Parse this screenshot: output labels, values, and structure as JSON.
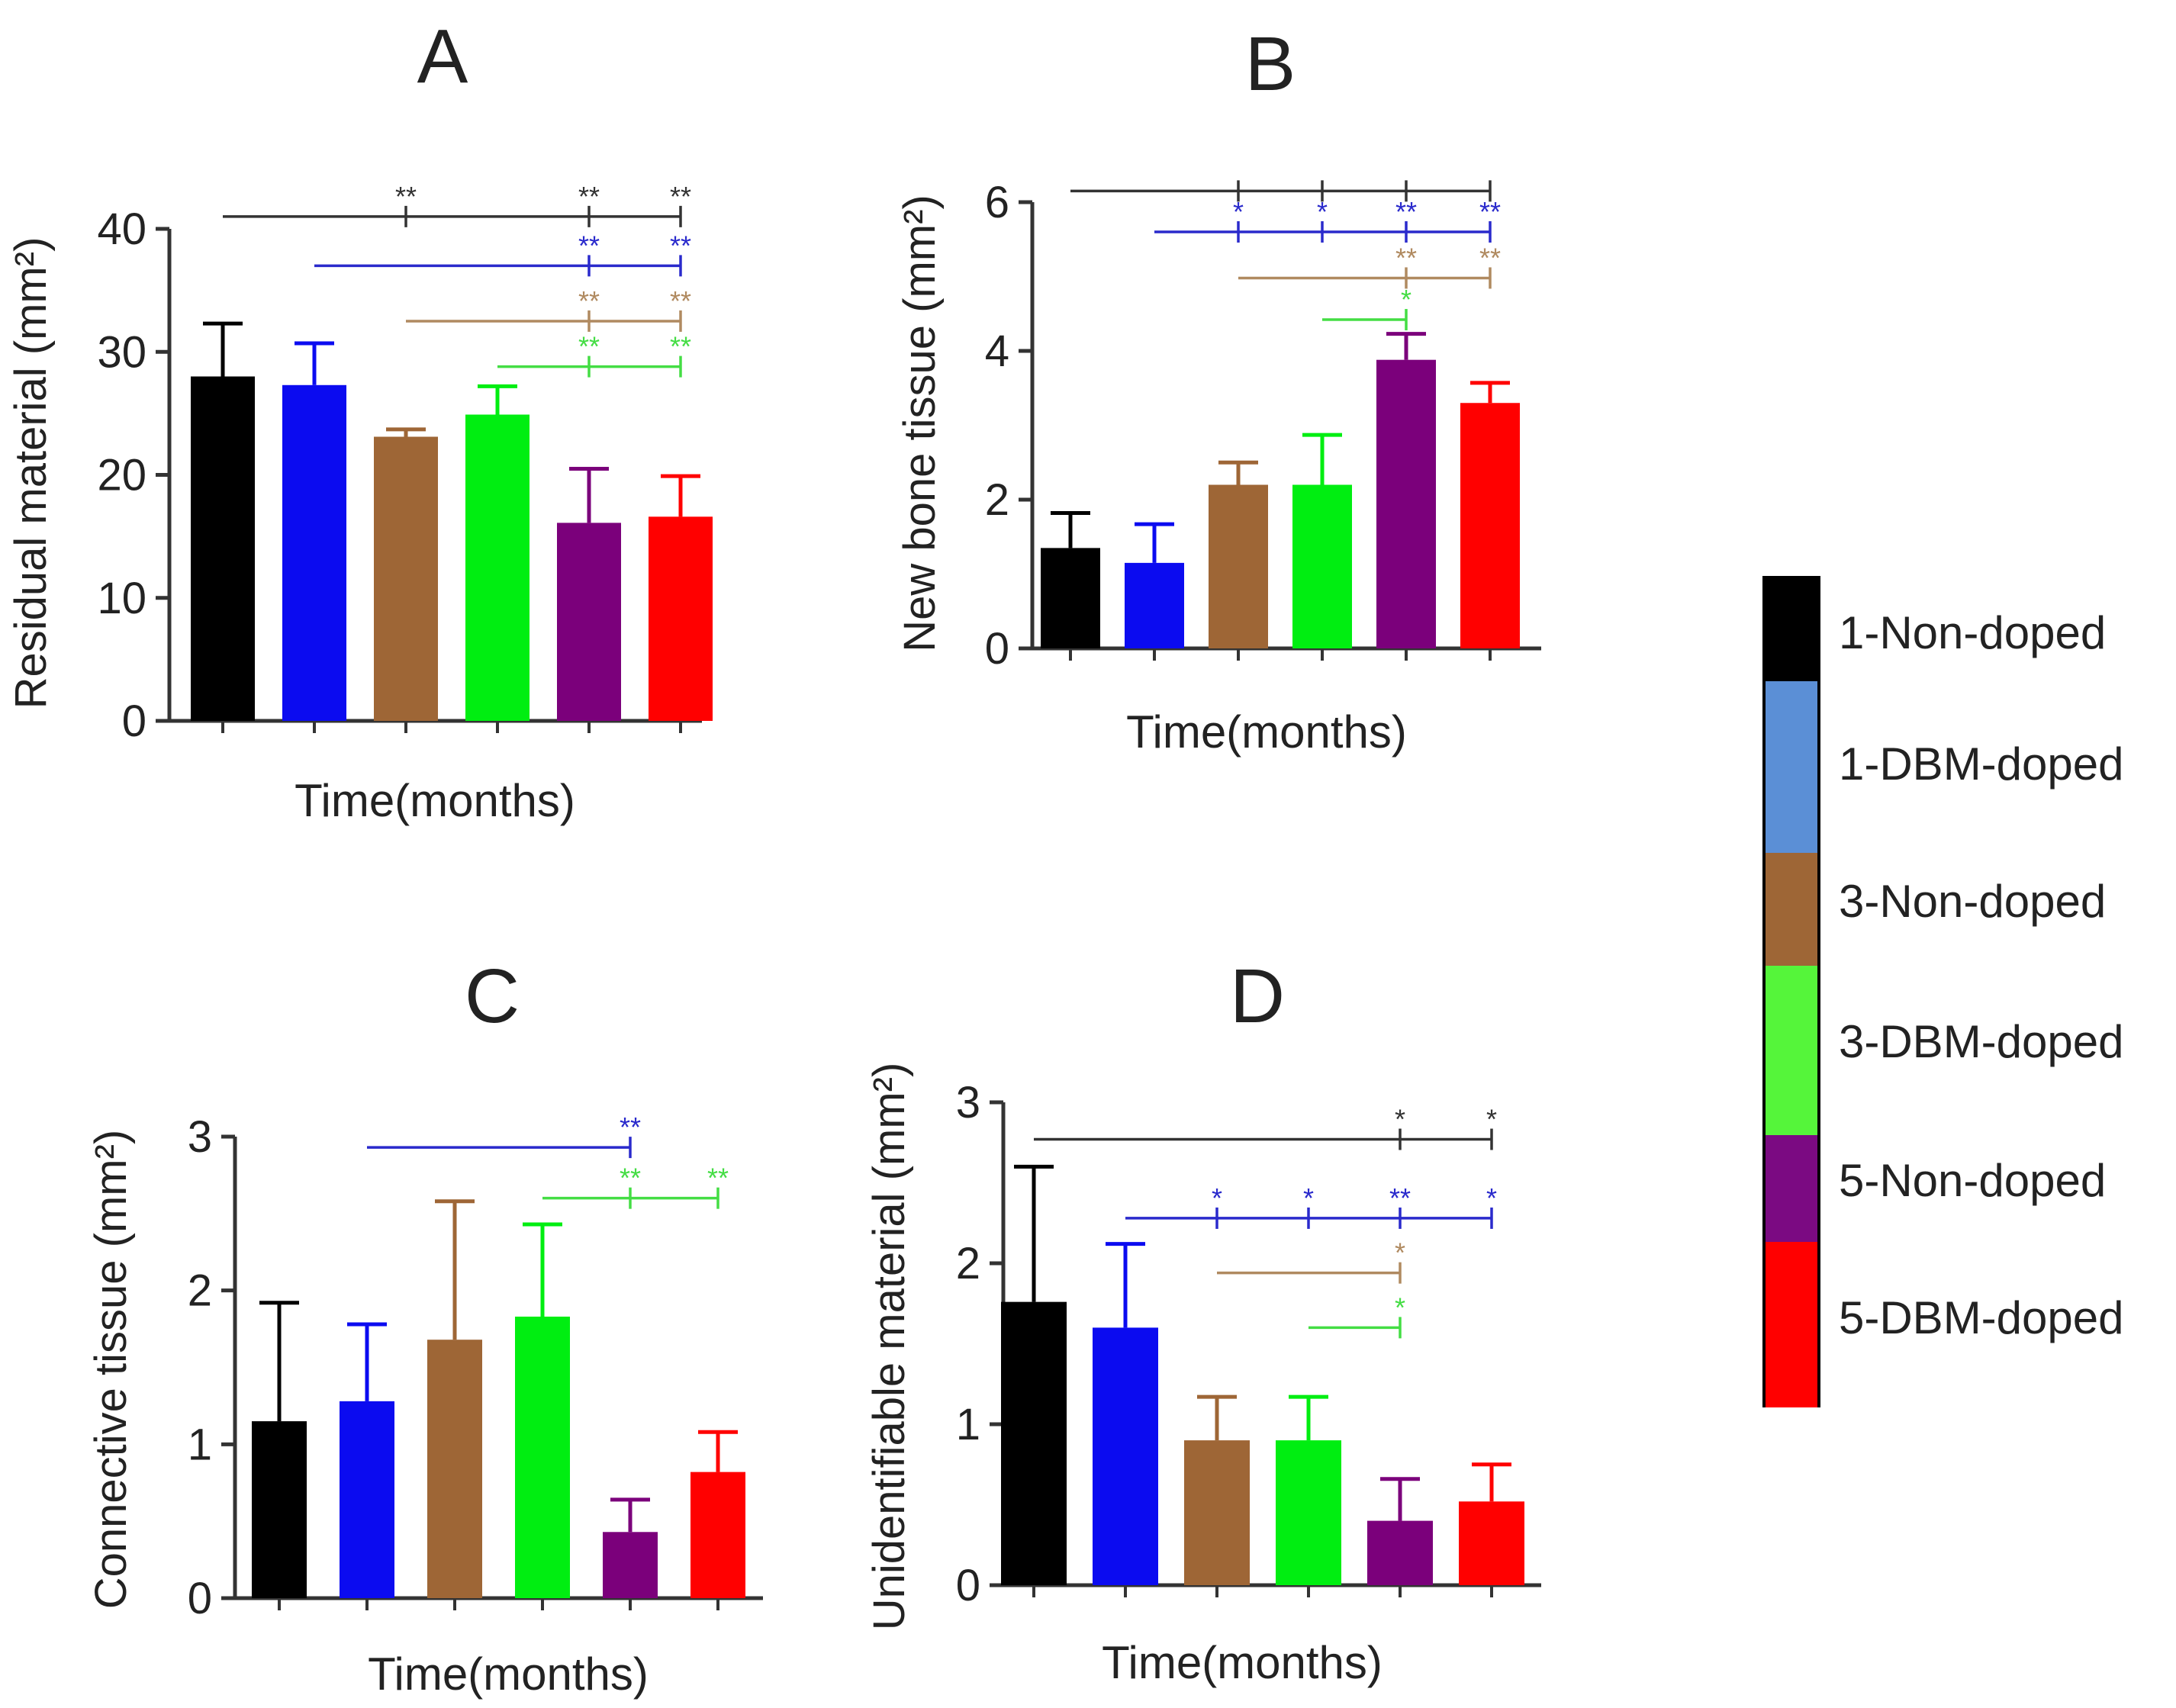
{
  "chart_data": [
    {
      "panel": "A",
      "type": "bar",
      "ylabel": "Residual material (mm²)",
      "xlabel": "Time(months)",
      "yticks": [
        0,
        10,
        20,
        30,
        40
      ],
      "ylim": [
        0,
        40
      ],
      "categories": [
        "1-Non-doped",
        "1-DBM-doped",
        "3-Non-doped",
        "3-DBM-doped",
        "5-Non-doped",
        "5-DBM-doped"
      ],
      "values": [
        28,
        27.3,
        23.1,
        24.9,
        16.1,
        16.6
      ],
      "errors": [
        4.3,
        3.4,
        0.6,
        2.3,
        4.4,
        3.3
      ],
      "significance": [
        {
          "color": "#333333",
          "y": 41,
          "from": 0,
          "ticks": [
            {
              "at": 2,
              "label": "**"
            },
            {
              "at": 4,
              "label": "**"
            },
            {
              "at": 5,
              "label": "**"
            }
          ]
        },
        {
          "color": "#2a2acc",
          "y": 37,
          "from": 1,
          "ticks": [
            {
              "at": 4,
              "label": "**"
            },
            {
              "at": 5,
              "label": "**"
            }
          ]
        },
        {
          "color": "#b08a60",
          "y": 32.5,
          "from": 2,
          "ticks": [
            {
              "at": 4,
              "label": "**"
            },
            {
              "at": 5,
              "label": "**"
            }
          ]
        },
        {
          "color": "#44dd44",
          "y": 28.8,
          "from": 3,
          "ticks": [
            {
              "at": 4,
              "label": "**"
            },
            {
              "at": 5,
              "label": "**"
            }
          ]
        }
      ]
    },
    {
      "panel": "B",
      "type": "bar",
      "ylabel": "New bone tissue (mm²)",
      "xlabel": "Time(months)",
      "yticks": [
        0,
        2,
        4,
        6
      ],
      "ylim": [
        0,
        6
      ],
      "categories": [
        "1-Non-doped",
        "1-DBM-doped",
        "3-Non-doped",
        "3-DBM-doped",
        "5-Non-doped",
        "5-DBM-doped"
      ],
      "values": [
        1.35,
        1.15,
        2.2,
        2.2,
        3.88,
        3.3
      ],
      "errors": [
        0.47,
        0.52,
        0.3,
        0.67,
        0.35,
        0.27
      ],
      "significance": [
        {
          "color": "#333333",
          "y": 6.15,
          "from": 0,
          "ticks": [
            {
              "at": 2,
              "label": ""
            },
            {
              "at": 3,
              "label": ""
            },
            {
              "at": 4,
              "label": ""
            },
            {
              "at": 5,
              "label": ""
            }
          ]
        },
        {
          "color": "#2a2acc",
          "y": 5.6,
          "from": 1,
          "ticks": [
            {
              "at": 2,
              "label": "*"
            },
            {
              "at": 3,
              "label": "*"
            },
            {
              "at": 4,
              "label": "**"
            },
            {
              "at": 5,
              "label": "**"
            }
          ]
        },
        {
          "color": "#b08a60",
          "y": 4.98,
          "from": 2,
          "ticks": [
            {
              "at": 4,
              "label": "**"
            },
            {
              "at": 5,
              "label": "**"
            }
          ]
        },
        {
          "color": "#44dd44",
          "y": 4.42,
          "from": 3,
          "ticks": [
            {
              "at": 4,
              "label": "*"
            }
          ]
        }
      ]
    },
    {
      "panel": "C",
      "type": "bar",
      "ylabel": "Connective tissue (mm²)",
      "xlabel": "Time(months)",
      "yticks": [
        0,
        1,
        2,
        3
      ],
      "ylim": [
        0,
        3
      ],
      "categories": [
        "1-Non-doped",
        "1-DBM-doped",
        "3-Non-doped",
        "3-DBM-doped",
        "5-Non-doped",
        "5-DBM-doped"
      ],
      "values": [
        1.15,
        1.28,
        1.68,
        1.83,
        0.43,
        0.82
      ],
      "errors": [
        0.77,
        0.5,
        0.9,
        0.6,
        0.21,
        0.26
      ],
      "significance": [
        {
          "color": "#2a2acc",
          "y": 2.93,
          "from": 1,
          "ticks": [
            {
              "at": 4,
              "label": "**"
            }
          ]
        },
        {
          "color": "#44dd44",
          "y": 2.6,
          "from": 3,
          "ticks": [
            {
              "at": 4,
              "label": "**"
            },
            {
              "at": 5,
              "label": "**"
            }
          ]
        }
      ]
    },
    {
      "panel": "D",
      "type": "bar",
      "ylabel": "Unidentifiable material (mm²)",
      "xlabel": "Time(months)",
      "yticks": [
        0,
        1,
        2,
        3
      ],
      "ylim": [
        0,
        3
      ],
      "categories": [
        "1-Non-doped",
        "1-DBM-doped",
        "3-Non-doped",
        "3-DBM-doped",
        "5-Non-doped",
        "5-DBM-doped"
      ],
      "values": [
        1.76,
        1.6,
        0.9,
        0.9,
        0.4,
        0.52
      ],
      "errors": [
        0.84,
        0.52,
        0.27,
        0.27,
        0.26,
        0.23
      ],
      "significance": [
        {
          "color": "#333333",
          "y": 2.77,
          "from": 0,
          "ticks": [
            {
              "at": 4,
              "label": "*"
            },
            {
              "at": 5,
              "label": "*"
            }
          ]
        },
        {
          "color": "#2a2acc",
          "y": 2.28,
          "from": 1,
          "ticks": [
            {
              "at": 2,
              "label": "*"
            },
            {
              "at": 3,
              "label": "*"
            },
            {
              "at": 4,
              "label": "**"
            },
            {
              "at": 5,
              "label": "*"
            }
          ]
        },
        {
          "color": "#b08a60",
          "y": 1.94,
          "from": 2,
          "ticks": [
            {
              "at": 4,
              "label": "*"
            }
          ]
        },
        {
          "color": "#44dd44",
          "y": 1.6,
          "from": 3,
          "ticks": [
            {
              "at": 4,
              "label": "*"
            }
          ]
        }
      ]
    }
  ],
  "bar_colors": [
    "#000000",
    "#0b0bf0",
    "#9e6636",
    "#00ee11",
    "#7b007b",
    "#ff0000"
  ],
  "legend": [
    {
      "label": "1-Non-doped",
      "color": "#000000"
    },
    {
      "label": "1-DBM-doped",
      "color": "#5b8fd6"
    },
    {
      "label": "3-Non-doped",
      "color": "#9e6636"
    },
    {
      "label": "3-DBM-doped",
      "color": "#55f53a"
    },
    {
      "label": "5-Non-doped",
      "color": "#7b0a82"
    },
    {
      "label": "5-DBM-doped",
      "color": "#ff0000"
    }
  ]
}
